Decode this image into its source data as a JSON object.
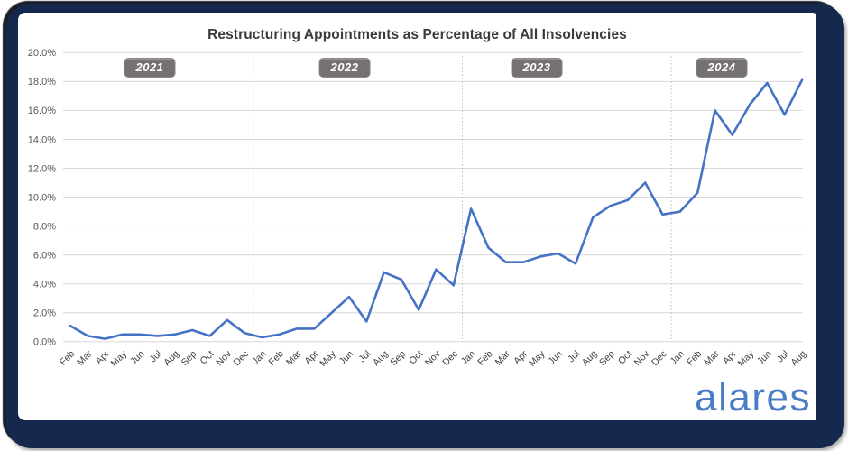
{
  "title": "Restructuring Appointments as Percentage of All Insolvencies",
  "logo_text": "alares",
  "years": [
    {
      "label": "2021"
    },
    {
      "label": "2022"
    },
    {
      "label": "2023"
    },
    {
      "label": "2024"
    }
  ],
  "chart_data": {
    "type": "line",
    "title": "Restructuring Appointments as Percentage of All Insolvencies",
    "xlabel": "",
    "ylabel": "",
    "ylim": [
      0,
      20
    ],
    "ytick_step": 2,
    "y_tick_labels": [
      "0.0%",
      "2.0%",
      "4.0%",
      "6.0%",
      "8.0%",
      "10.0%",
      "12.0%",
      "14.0%",
      "16.0%",
      "18.0%",
      "20.0%"
    ],
    "grid": "horizontal",
    "legend": "none",
    "line_color": "#4472C4",
    "gridline_color": "#d9d9d9",
    "separator_color": "#bdbdbd",
    "axis_label_color": "#595959",
    "month_label_color": "#404040",
    "categories": [
      "Feb",
      "Mar",
      "Apr",
      "May",
      "Jun",
      "Jul",
      "Aug",
      "Sep",
      "Oct",
      "Nov",
      "Dec",
      "Jan",
      "Feb",
      "Mar",
      "Apr",
      "May",
      "Jun",
      "Jul",
      "Aug",
      "Sep",
      "Oct",
      "Nov",
      "Dec",
      "Jan",
      "Feb",
      "Mar",
      "Apr",
      "May",
      "Jun",
      "Jul",
      "Aug",
      "Sep",
      "Oct",
      "Nov",
      "Dec",
      "Jan",
      "Feb",
      "Mar",
      "Apr",
      "May",
      "Jun",
      "Jul",
      "Aug"
    ],
    "category_years": [
      "2021 (Feb-Dec)",
      "2022 (Jan-Dec)",
      "2023 (Jan-Dec)",
      "2024 (Jan-Aug)"
    ],
    "values": [
      1.1,
      0.4,
      0.2,
      0.5,
      0.5,
      0.4,
      0.5,
      0.8,
      0.4,
      1.5,
      0.6,
      0.3,
      0.5,
      0.9,
      0.9,
      2.0,
      3.1,
      1.4,
      4.8,
      4.3,
      2.2,
      5.0,
      3.9,
      9.2,
      6.5,
      5.5,
      5.5,
      5.9,
      6.1,
      5.4,
      8.6,
      9.4,
      9.8,
      11.0,
      8.8,
      9.0,
      10.3,
      16.0,
      14.3,
      16.4,
      17.9,
      15.7,
      18.1
    ],
    "year_separator_positions": [
      10.5,
      22.5,
      34.5
    ]
  }
}
